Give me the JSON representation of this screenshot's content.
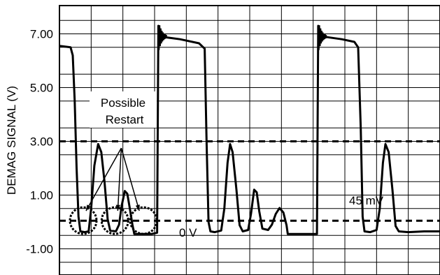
{
  "chart_data": {
    "type": "line",
    "ylabel": "DEMAG SIGNAL (V)",
    "y_ticks": [
      7.0,
      5.0,
      3.0,
      1.0,
      -1.0
    ],
    "y_tick_labels": [
      "7.00",
      "5.00",
      "3.00",
      "1.00",
      "-1.00"
    ],
    "ylim": [
      -2.0,
      8.0
    ],
    "xlim": [
      0,
      12
    ],
    "grid": true,
    "reference_lines": [
      {
        "y": 3.0,
        "style": "dashed"
      },
      {
        "y": 0.045,
        "style": "dashed"
      }
    ],
    "annotations": {
      "possible_restart": [
        "Possible",
        "Restart"
      ],
      "mv_label": "45 mV",
      "zero_label": "0 V"
    },
    "restart_markers_x": [
      0.75,
      1.75,
      2.65
    ],
    "series": [
      {
        "points": [
          [
            0.0,
            6.55
          ],
          [
            0.35,
            6.5
          ],
          [
            0.42,
            6.2
          ],
          [
            0.48,
            4.5
          ],
          [
            0.54,
            2.0
          ],
          [
            0.6,
            0.2
          ],
          [
            0.66,
            -0.35
          ],
          [
            0.8,
            -0.38
          ],
          [
            0.92,
            -0.35
          ],
          [
            1.0,
            0.5
          ],
          [
            1.1,
            2.1
          ],
          [
            1.22,
            2.9
          ],
          [
            1.32,
            2.6
          ],
          [
            1.42,
            1.5
          ],
          [
            1.52,
            0.1
          ],
          [
            1.6,
            -0.32
          ],
          [
            1.78,
            -0.35
          ],
          [
            1.88,
            -0.1
          ],
          [
            1.96,
            0.6
          ],
          [
            2.06,
            1.15
          ],
          [
            2.14,
            1.05
          ],
          [
            2.22,
            0.5
          ],
          [
            2.3,
            -0.1
          ],
          [
            2.36,
            -0.45
          ],
          [
            2.9,
            -0.45
          ],
          [
            3.08,
            -0.4
          ],
          [
            3.12,
            7.3
          ],
          [
            3.15,
            6.9
          ],
          [
            3.2,
            7.0
          ],
          [
            3.25,
            6.9
          ],
          [
            3.3,
            6.88
          ],
          [
            3.8,
            6.8
          ],
          [
            4.4,
            6.65
          ],
          [
            4.58,
            6.45
          ],
          [
            4.64,
            3.0
          ],
          [
            4.7,
            0.0
          ],
          [
            4.76,
            -0.35
          ],
          [
            4.9,
            -0.38
          ],
          [
            5.1,
            -0.32
          ],
          [
            5.2,
            0.5
          ],
          [
            5.3,
            2.2
          ],
          [
            5.38,
            2.9
          ],
          [
            5.46,
            2.6
          ],
          [
            5.58,
            1.2
          ],
          [
            5.68,
            -0.12
          ],
          [
            5.78,
            -0.35
          ],
          [
            5.95,
            -0.3
          ],
          [
            6.04,
            0.3
          ],
          [
            6.14,
            1.2
          ],
          [
            6.22,
            1.1
          ],
          [
            6.3,
            0.4
          ],
          [
            6.4,
            -0.25
          ],
          [
            6.58,
            -0.3
          ],
          [
            6.7,
            -0.1
          ],
          [
            6.82,
            0.3
          ],
          [
            6.94,
            0.52
          ],
          [
            7.06,
            0.35
          ],
          [
            7.16,
            -0.12
          ],
          [
            7.2,
            -0.45
          ],
          [
            8.12,
            -0.45
          ],
          [
            8.16,
            7.3
          ],
          [
            8.2,
            6.95
          ],
          [
            8.25,
            7.0
          ],
          [
            8.3,
            6.9
          ],
          [
            8.9,
            6.8
          ],
          [
            9.3,
            6.7
          ],
          [
            9.42,
            6.5
          ],
          [
            9.5,
            3.5
          ],
          [
            9.56,
            0.2
          ],
          [
            9.62,
            -0.35
          ],
          [
            9.8,
            -0.38
          ],
          [
            10.0,
            -0.3
          ],
          [
            10.1,
            0.5
          ],
          [
            10.2,
            2.2
          ],
          [
            10.28,
            2.9
          ],
          [
            10.38,
            2.6
          ],
          [
            10.5,
            1.2
          ],
          [
            10.6,
            -0.15
          ],
          [
            10.7,
            -0.35
          ],
          [
            11.0,
            -0.38
          ],
          [
            11.5,
            -0.35
          ],
          [
            12.0,
            -0.35
          ]
        ]
      }
    ]
  }
}
